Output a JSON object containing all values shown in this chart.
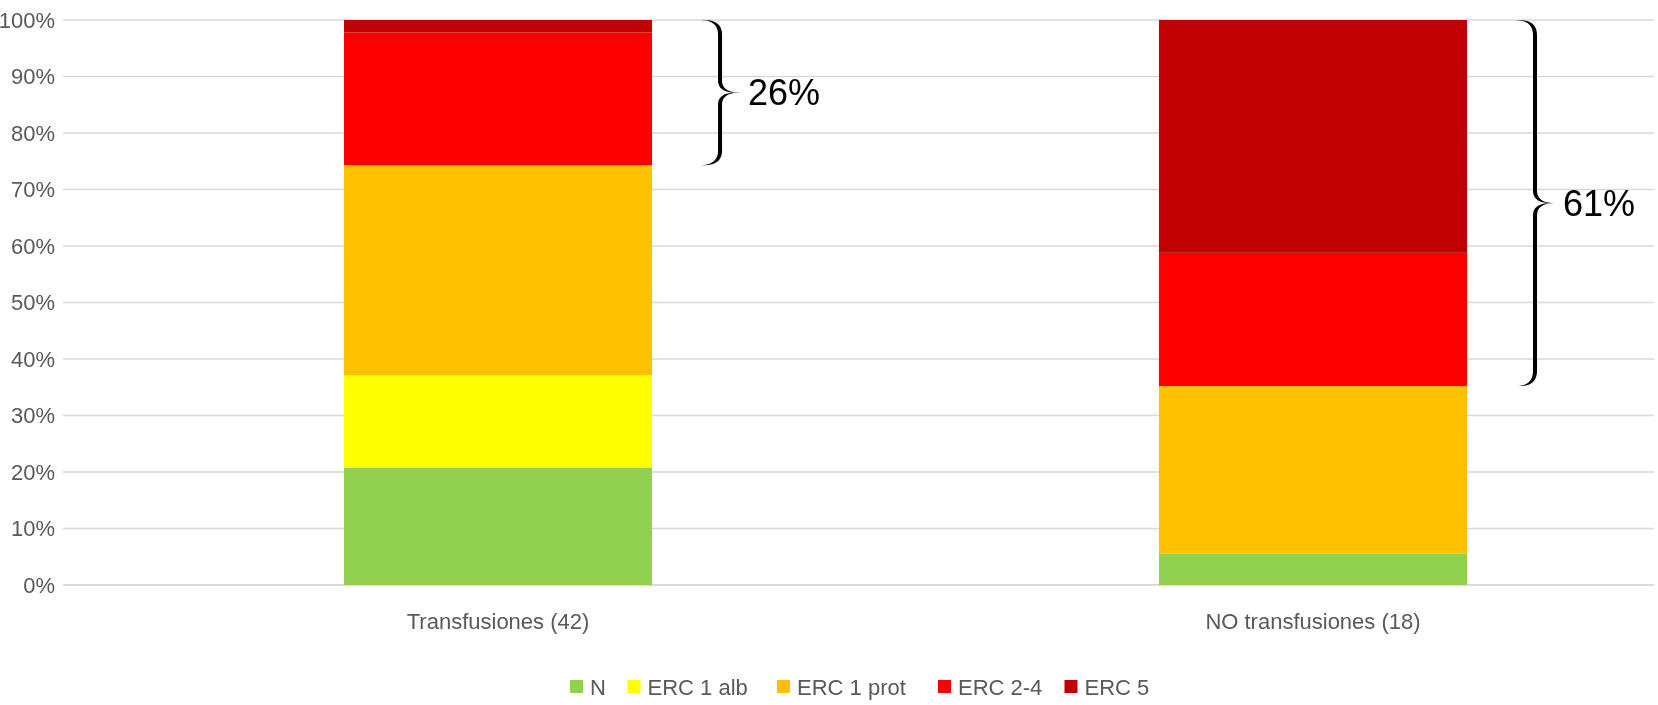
{
  "chart_data": {
    "type": "bar",
    "stacked": true,
    "categories": [
      "Transfusiones (42)",
      "NO transfusiones (18)"
    ],
    "series": [
      {
        "name": "N",
        "color": "#92d050",
        "values": [
          20.8,
          5.6
        ]
      },
      {
        "name": "ERC 1 alb",
        "color": "#ffff00",
        "values": [
          16.3,
          0
        ]
      },
      {
        "name": "ERC 1 prot",
        "color": "#ffc000",
        "values": [
          37.2,
          29.6
        ]
      },
      {
        "name": "ERC 2-4",
        "color": "#ff0000",
        "values": [
          23.5,
          23.6
        ]
      },
      {
        "name": "ERC 5",
        "color": "#c00000",
        "values": [
          2.2,
          41.2
        ]
      }
    ],
    "ylim": [
      0,
      100
    ],
    "yticks": [
      {
        "value": 0,
        "label": "0%"
      },
      {
        "value": 10,
        "label": "10%"
      },
      {
        "value": 20,
        "label": "20%"
      },
      {
        "value": 30,
        "label": "30%"
      },
      {
        "value": 40,
        "label": "40%"
      },
      {
        "value": 50,
        "label": "50%"
      },
      {
        "value": 60,
        "label": "60%"
      },
      {
        "value": 70,
        "label": "70%"
      },
      {
        "value": 80,
        "label": "80%"
      },
      {
        "value": 90,
        "label": "90%"
      },
      {
        "value": 100,
        "label": "100%"
      }
    ],
    "grid": "y",
    "legend": "bottom",
    "annotations": [
      "26%",
      "61%"
    ]
  }
}
